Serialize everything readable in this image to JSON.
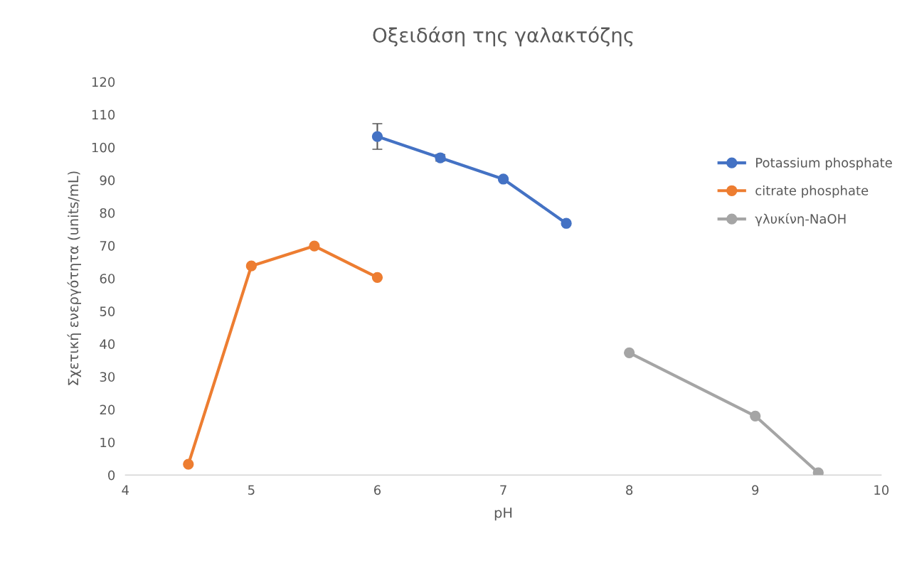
{
  "chart_data": {
    "type": "line",
    "title": "Οξειδάση της γαλακτόζης",
    "xlabel": "pH",
    "ylabel": "Σχετική ενεργότητα (units/mL)",
    "xlim": [
      4,
      10
    ],
    "xticks": [
      4,
      5,
      6,
      7,
      8,
      9,
      10
    ],
    "ylim": [
      0,
      120
    ],
    "yticks": [
      0,
      10,
      20,
      30,
      40,
      50,
      60,
      70,
      80,
      90,
      100,
      110,
      120
    ],
    "grid": false,
    "legend": "right",
    "marker": "circle",
    "line_style": "solid",
    "series": [
      {
        "name": "Potassium phosphate",
        "color": "#4472c4",
        "x": [
          6,
          6.5,
          7,
          7.5
        ],
        "values": [
          103.3,
          96.8,
          90.3,
          76.8
        ],
        "errors": [
          3.9,
          1,
          null,
          null
        ]
      },
      {
        "name": "citrate phosphate",
        "color": "#ed7d31",
        "x": [
          4.5,
          5,
          5.5,
          6
        ],
        "values": [
          3.3,
          63.8,
          69.9,
          60.3
        ]
      },
      {
        "name": "γλυκίνη-NaOH",
        "color": "#a5a5a5",
        "x": [
          8,
          9,
          9.5
        ],
        "values": [
          37.3,
          18.0,
          0.7
        ]
      }
    ]
  }
}
